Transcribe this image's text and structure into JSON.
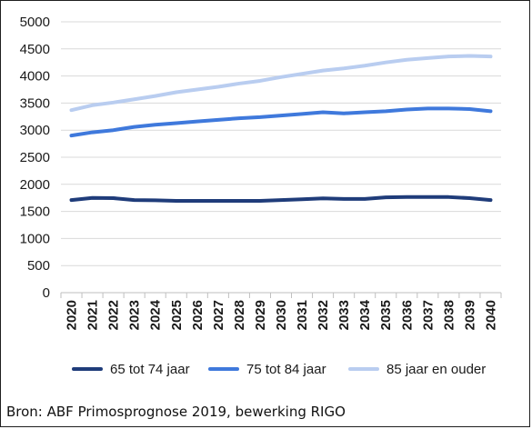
{
  "chart_data": {
    "type": "line",
    "title": "",
    "xlabel": "",
    "ylabel": "",
    "x": [
      "2020",
      "2021",
      "2022",
      "2023",
      "2024",
      "2025",
      "2026",
      "2027",
      "2028",
      "2029",
      "2030",
      "2031",
      "2032",
      "2033",
      "2034",
      "2035",
      "2036",
      "2037",
      "2038",
      "2039",
      "2040"
    ],
    "ylim": [
      0,
      5000
    ],
    "yticks": [
      "0",
      "500",
      "1000",
      "1500",
      "2000",
      "2500",
      "3000",
      "3500",
      "4000",
      "4500",
      "5000"
    ],
    "grid": "horizontal",
    "legend_position": "bottom",
    "series": [
      {
        "name": "65 tot 74 jaar",
        "color": "#1f3c7a",
        "values": [
          1710,
          1750,
          1745,
          1710,
          1705,
          1695,
          1695,
          1695,
          1695,
          1695,
          1710,
          1725,
          1740,
          1730,
          1730,
          1760,
          1765,
          1765,
          1765,
          1745,
          1710
        ]
      },
      {
        "name": "75 tot 84 jaar",
        "color": "#3f79dc",
        "values": [
          2900,
          2960,
          3000,
          3060,
          3100,
          3130,
          3160,
          3190,
          3220,
          3240,
          3270,
          3300,
          3330,
          3310,
          3330,
          3350,
          3380,
          3400,
          3400,
          3390,
          3350
        ]
      },
      {
        "name": "85 jaar en ouder",
        "color": "#b9cdf0",
        "values": [
          3370,
          3460,
          3510,
          3570,
          3630,
          3700,
          3750,
          3800,
          3860,
          3910,
          3980,
          4040,
          4100,
          4140,
          4190,
          4250,
          4300,
          4330,
          4360,
          4370,
          4360
        ]
      }
    ]
  },
  "source_text": "Bron: ABF Primosprognose 2019, bewerking RIGO"
}
